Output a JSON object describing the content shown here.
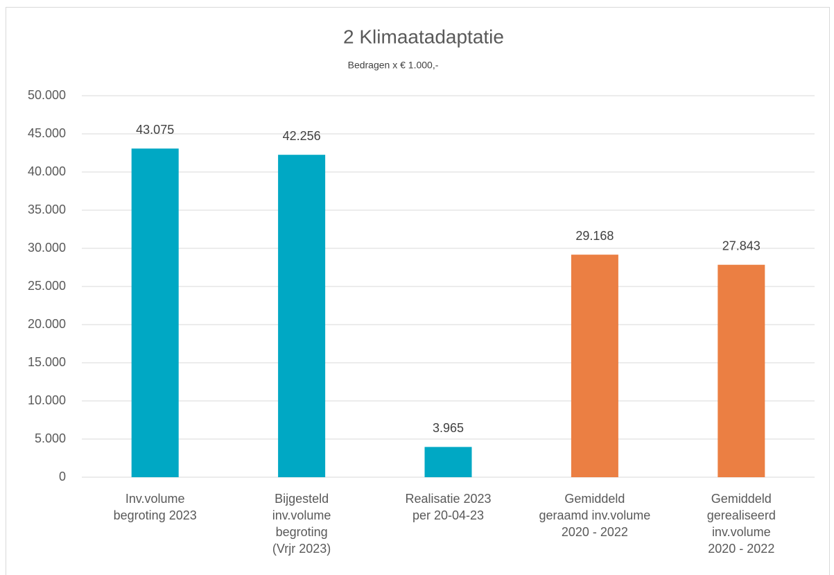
{
  "chart_data": {
    "type": "bar",
    "title": "2 Klimaatadaptatie",
    "subtitle": "Bedragen x € 1.000,-",
    "categories": [
      [
        "Inv.volume",
        "begroting 2023"
      ],
      [
        "Bijgesteld",
        "inv.volume",
        "begroting",
        "(Vrjr 2023)"
      ],
      [
        "Realisatie 2023",
        "per 20-04-23"
      ],
      [
        "Gemiddeld",
        "geraamd inv.volume",
        "2020 - 2022"
      ],
      [
        "Gemiddeld",
        "gerealiseerd",
        "inv.volume",
        "2020 - 2022"
      ]
    ],
    "values": [
      43075,
      42256,
      3965,
      29168,
      27843
    ],
    "value_labels": [
      "43.075",
      "42.256",
      "3.965",
      "29.168",
      "27.843"
    ],
    "colors": [
      "#00a8c4",
      "#00a8c4",
      "#00a8c4",
      "#eb7f43",
      "#eb7f43"
    ],
    "ylim": [
      0,
      50000
    ],
    "yticks": [
      {
        "value": 0,
        "label": "0"
      },
      {
        "value": 5000,
        "label": "5.000"
      },
      {
        "value": 10000,
        "label": "10.000"
      },
      {
        "value": 15000,
        "label": "15.000"
      },
      {
        "value": 20000,
        "label": "20.000"
      },
      {
        "value": 25000,
        "label": "25.000"
      },
      {
        "value": 30000,
        "label": "30.000"
      },
      {
        "value": 35000,
        "label": "35.000"
      },
      {
        "value": 40000,
        "label": "40.000"
      },
      {
        "value": 45000,
        "label": "45.000"
      },
      {
        "value": 50000,
        "label": "50.000"
      }
    ],
    "grid": true
  }
}
